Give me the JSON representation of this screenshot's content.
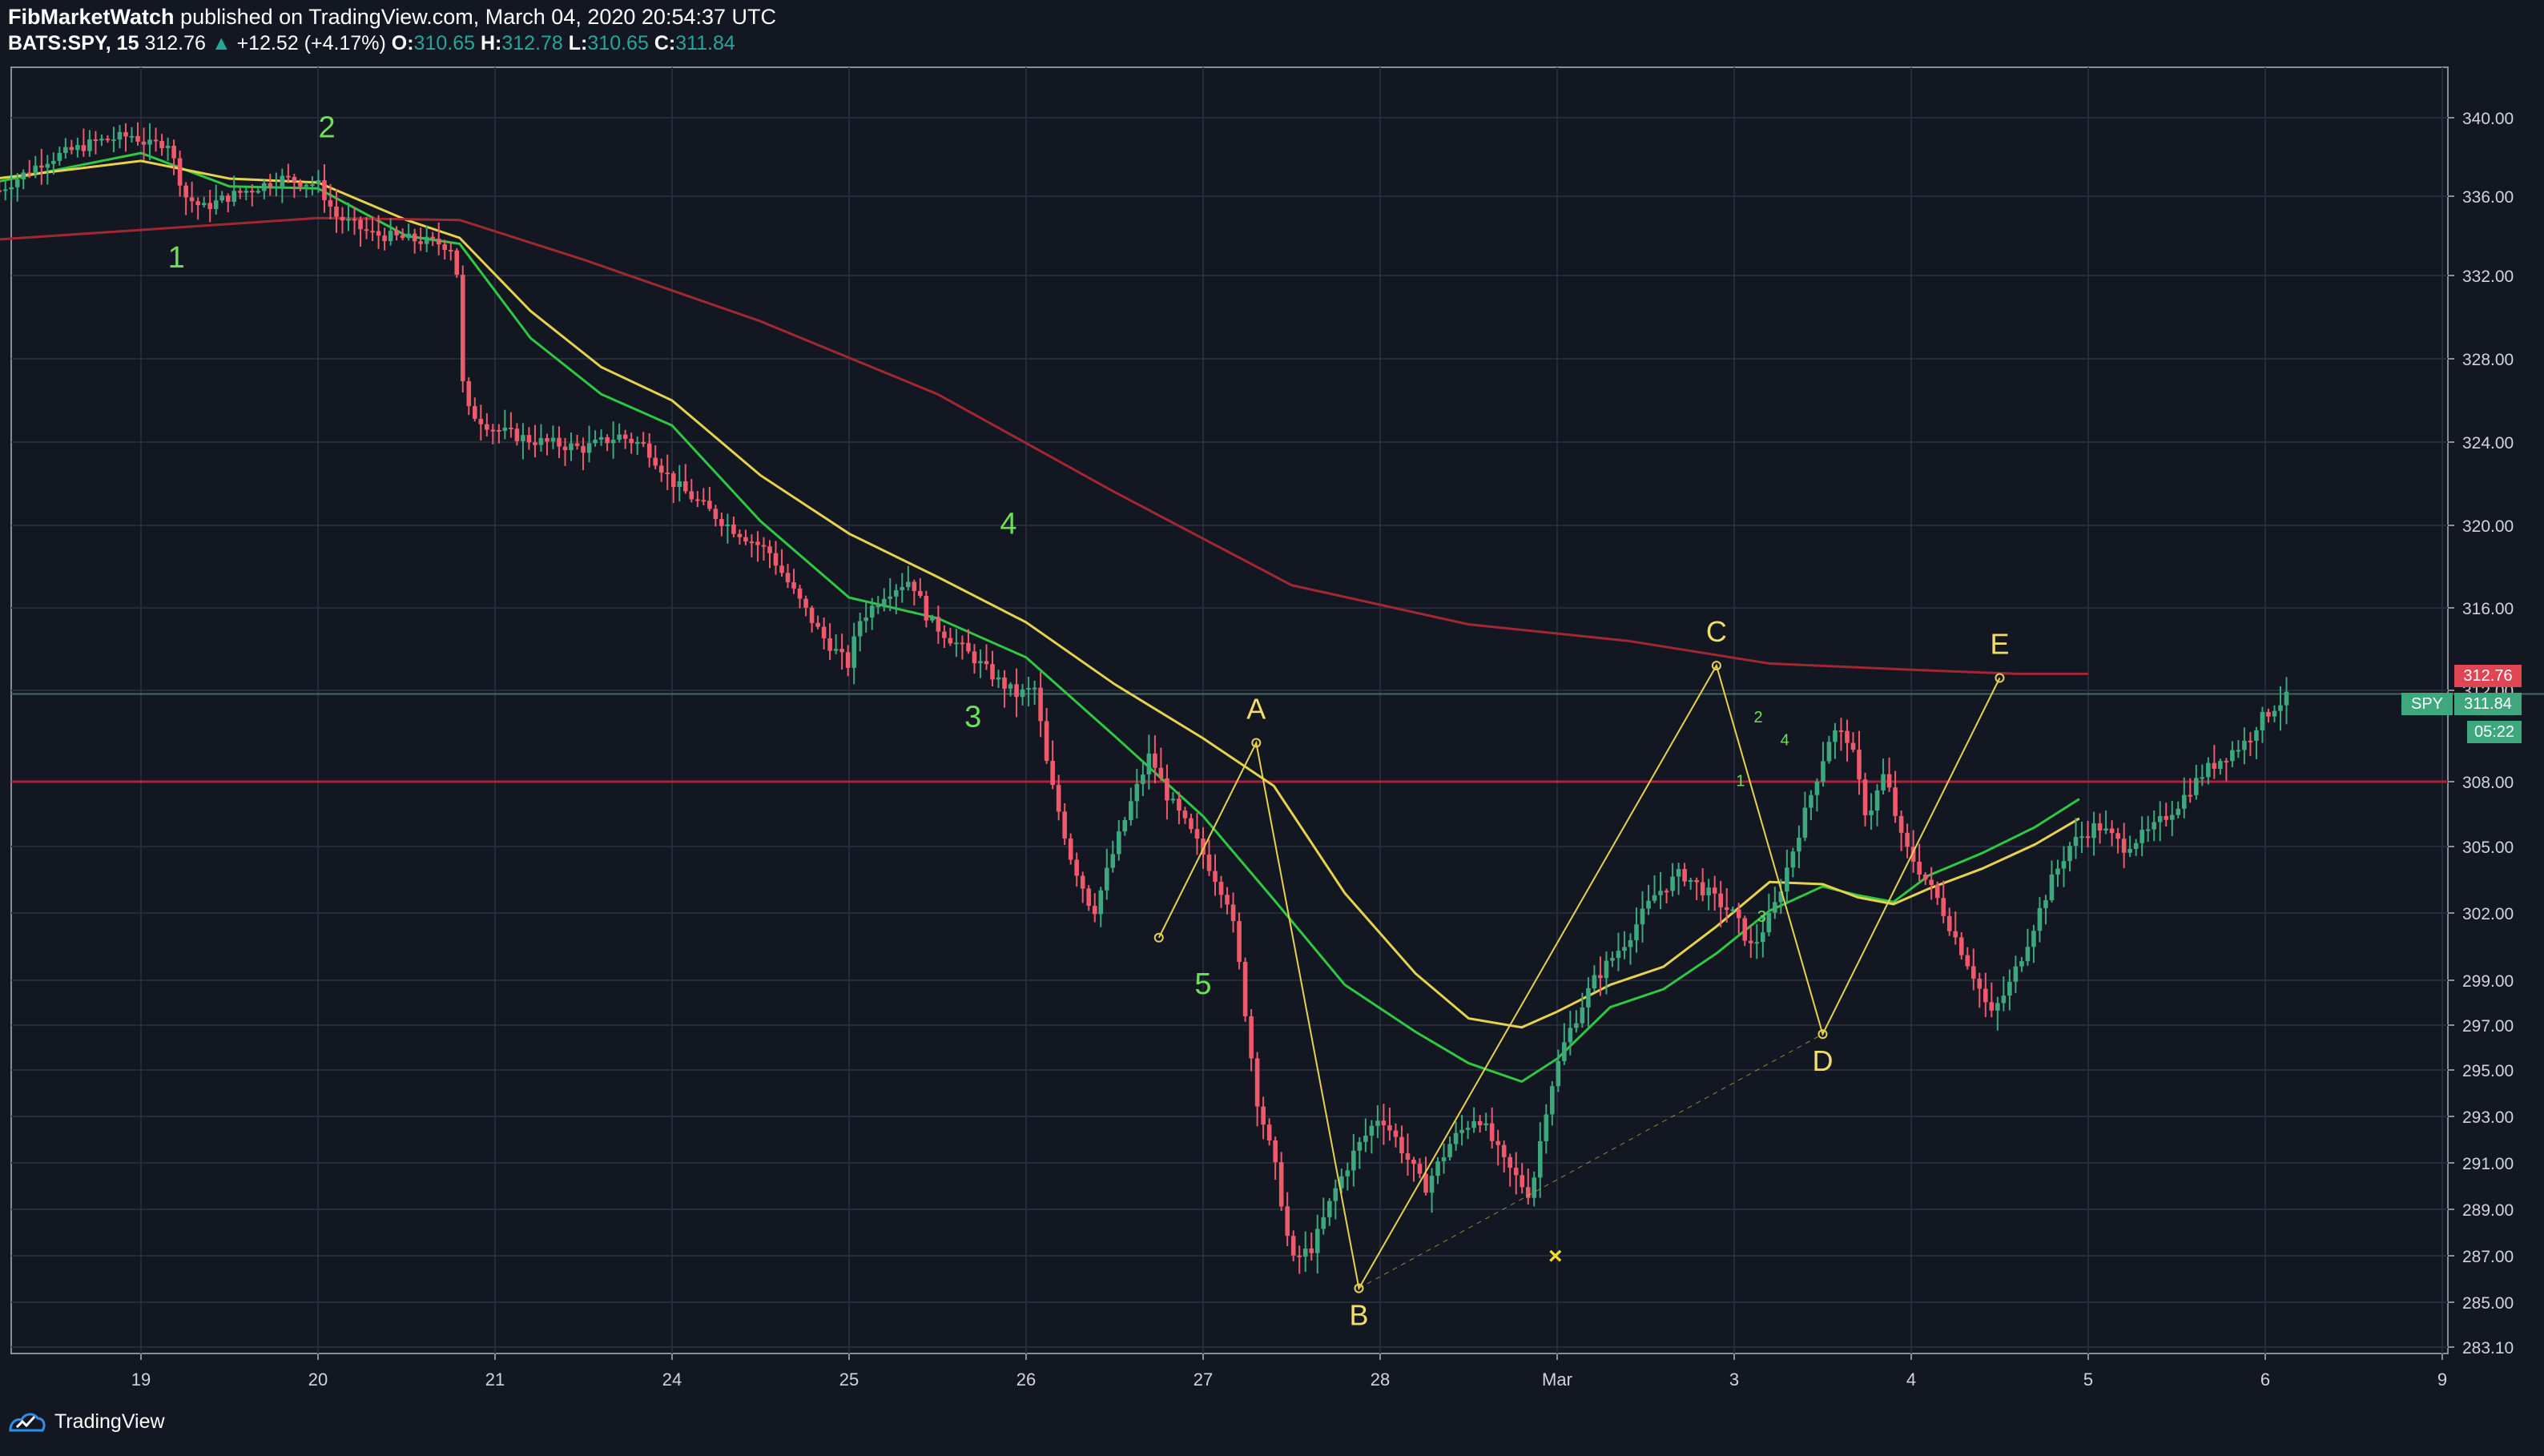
{
  "header": {
    "publisher": "FibMarketWatch",
    "published_text": "published on TradingView.com, March 04, 2020 20:54:37 UTC",
    "symbol": "BATS:SPY, 15",
    "last_price": "312.76",
    "change": "+12.52 (+4.17%)",
    "open_label": "O:",
    "open": "310.65",
    "high_label": "H:",
    "high": "312.78",
    "low_label": "L:",
    "low": "310.65",
    "close_label": "C:",
    "close": "311.84"
  },
  "badges": {
    "ma_price": "312.76",
    "symbol_tag": "SPY",
    "last_price": "311.84",
    "countdown": "05:22"
  },
  "footer": {
    "brand": "TradingView"
  },
  "colors": {
    "background": "#131722",
    "grid": "#262b3a",
    "up": "#3ea77e",
    "down": "#ee5a6c",
    "ema_fast": "#2ec842",
    "ema_slow": "#e6d24d",
    "ma_long": "#a12833",
    "hline": "#b0203a",
    "pattern": "#e6d24d",
    "wave_label": "#6de05a",
    "pattern_label": "#f3dd6a"
  },
  "chart_data": {
    "type": "candlestick",
    "symbol": "BATS:SPY",
    "interval": "15",
    "x_axis_labels": [
      {
        "label": "19",
        "t": 1
      },
      {
        "label": "20",
        "t": 2
      },
      {
        "label": "21",
        "t": 3
      },
      {
        "label": "24",
        "t": 4
      },
      {
        "label": "25",
        "t": 5
      },
      {
        "label": "26",
        "t": 6
      },
      {
        "label": "27",
        "t": 7
      },
      {
        "label": "28",
        "t": 8
      },
      {
        "label": "Mar",
        "t": 9
      },
      {
        "label": "3",
        "t": 10
      },
      {
        "label": "4",
        "t": 11
      },
      {
        "label": "5",
        "t": 12
      },
      {
        "label": "6",
        "t": 13
      },
      {
        "label": "9",
        "t": 14
      }
    ],
    "y_axis_ticks": [
      "340.00",
      "336.00",
      "332.00",
      "328.00",
      "324.00",
      "320.00",
      "316.00",
      "312.00",
      "308.00",
      "305.00",
      "302.00",
      "299.00",
      "297.00",
      "295.00",
      "293.00",
      "291.00",
      "289.00",
      "287.00",
      "285.00",
      "283.10"
    ],
    "price_path": [
      [
        0.2,
        336.3
      ],
      [
        0.45,
        337.8
      ],
      [
        0.75,
        338.8
      ],
      [
        0.95,
        339.1
      ],
      [
        1.05,
        338.6
      ],
      [
        1.15,
        338.8
      ],
      [
        1.25,
        336.0
      ],
      [
        1.35,
        335.4
      ],
      [
        1.5,
        336.0
      ],
      [
        1.8,
        336.9
      ],
      [
        2.0,
        336.6
      ],
      [
        2.1,
        335.0
      ],
      [
        2.3,
        334.1
      ],
      [
        2.7,
        333.6
      ],
      [
        2.78,
        333.3
      ],
      [
        2.8,
        327.5
      ],
      [
        2.85,
        325.5
      ],
      [
        3.0,
        324.6
      ],
      [
        3.2,
        324.1
      ],
      [
        3.5,
        323.7
      ],
      [
        3.7,
        324.3
      ],
      [
        3.85,
        323.8
      ],
      [
        4.0,
        322.1
      ],
      [
        4.3,
        320.1
      ],
      [
        4.55,
        318.7
      ],
      [
        4.7,
        316.6
      ],
      [
        4.85,
        314.6
      ],
      [
        5.0,
        313.2
      ],
      [
        5.05,
        315.3
      ],
      [
        5.2,
        316.7
      ],
      [
        5.35,
        317.4
      ],
      [
        5.45,
        315.4
      ],
      [
        5.7,
        313.6
      ],
      [
        5.85,
        312.4
      ],
      [
        5.95,
        311.8
      ],
      [
        6.05,
        312.1
      ],
      [
        6.12,
        308.6
      ],
      [
        6.25,
        304.6
      ],
      [
        6.38,
        302.0
      ],
      [
        6.5,
        304.9
      ],
      [
        6.6,
        307.2
      ],
      [
        6.7,
        309.2
      ],
      [
        6.8,
        307.3
      ],
      [
        6.95,
        305.4
      ],
      [
        7.05,
        303.9
      ],
      [
        7.15,
        302.4
      ],
      [
        7.2,
        299.9
      ],
      [
        7.3,
        293.9
      ],
      [
        7.42,
        290.4
      ],
      [
        7.5,
        286.7
      ],
      [
        7.62,
        287.4
      ],
      [
        7.75,
        289.9
      ],
      [
        7.85,
        291.4
      ],
      [
        8.0,
        293.1
      ],
      [
        8.1,
        291.9
      ],
      [
        8.25,
        289.9
      ],
      [
        8.4,
        291.9
      ],
      [
        8.55,
        293.1
      ],
      [
        8.7,
        291.0
      ],
      [
        8.85,
        289.6
      ],
      [
        8.95,
        293.9
      ],
      [
        9.05,
        296.4
      ],
      [
        9.2,
        298.9
      ],
      [
        9.4,
        300.9
      ],
      [
        9.55,
        302.8
      ],
      [
        9.7,
        303.8
      ],
      [
        9.85,
        302.9
      ],
      [
        10.0,
        301.9
      ],
      [
        10.1,
        300.4
      ],
      [
        10.22,
        302.1
      ],
      [
        10.35,
        305.3
      ],
      [
        10.45,
        307.8
      ],
      [
        10.55,
        310.2
      ],
      [
        10.65,
        309.9
      ],
      [
        10.75,
        306.3
      ],
      [
        10.85,
        308.4
      ],
      [
        10.95,
        305.2
      ],
      [
        11.05,
        303.9
      ],
      [
        11.15,
        302.6
      ],
      [
        11.25,
        300.9
      ],
      [
        11.35,
        299.3
      ],
      [
        11.45,
        297.4
      ],
      [
        11.55,
        298.7
      ],
      [
        11.65,
        300.6
      ],
      [
        11.8,
        303.6
      ],
      [
        11.9,
        305.1
      ],
      [
        12.05,
        306.0
      ],
      [
        12.2,
        305.0
      ],
      [
        12.35,
        305.7
      ],
      [
        12.5,
        306.9
      ],
      [
        12.65,
        308.4
      ],
      [
        12.8,
        309.3
      ],
      [
        12.9,
        309.8
      ],
      [
        12.95,
        310.5
      ],
      [
        13.05,
        311.3
      ],
      [
        13.15,
        311.8
      ]
    ],
    "wave_labels": [
      {
        "label": "1",
        "t": 1.2,
        "price": 332.4
      },
      {
        "label": "2",
        "t": 2.05,
        "price": 339.0
      },
      {
        "label": "3",
        "t": 5.7,
        "price": 310.4
      },
      {
        "label": "4",
        "t": 5.9,
        "price": 319.6
      },
      {
        "label": "5",
        "t": 7.0,
        "price": 298.4
      }
    ],
    "pattern_points": [
      {
        "label": "A",
        "t": 7.3,
        "price": 309.7
      },
      {
        "label": "B",
        "t": 7.88,
        "price": 285.6
      },
      {
        "label": "C",
        "t": 9.9,
        "price": 313.2
      },
      {
        "label": "D",
        "t": 10.5,
        "price": 296.6
      },
      {
        "label": "E",
        "t": 11.5,
        "price": 312.6
      }
    ],
    "pattern_extra_points": [
      {
        "t": 6.75,
        "price": 300.9
      }
    ],
    "sub_wave_labels": [
      {
        "label": "1",
        "t": 9.9,
        "price": 307.8
      },
      {
        "label": "2",
        "t": 10.0,
        "price": 310.6
      },
      {
        "label": "3",
        "t": 10.02,
        "price": 301.6
      },
      {
        "label": "4",
        "t": 10.15,
        "price": 309.6
      }
    ],
    "horizontal_lines": [
      308.0
    ],
    "last_price_line": 311.84,
    "moving_averages": [
      {
        "name": "EMA fast",
        "points": [
          [
            0,
            336.4
          ],
          [
            1,
            338.2
          ],
          [
            1.5,
            336.5
          ],
          [
            2,
            336.4
          ],
          [
            2.5,
            334.0
          ],
          [
            2.8,
            333.6
          ],
          [
            3.2,
            329.0
          ],
          [
            3.6,
            326.3
          ],
          [
            4,
            324.8
          ],
          [
            4.5,
            320.2
          ],
          [
            5,
            316.5
          ],
          [
            5.5,
            315.5
          ],
          [
            6,
            313.6
          ],
          [
            6.5,
            310.0
          ],
          [
            7,
            306.4
          ],
          [
            7.4,
            302.6
          ],
          [
            7.8,
            298.8
          ],
          [
            8.2,
            296.7
          ],
          [
            8.5,
            295.3
          ],
          [
            8.8,
            294.5
          ],
          [
            9,
            295.5
          ],
          [
            9.3,
            297.8
          ],
          [
            9.6,
            298.6
          ],
          [
            9.9,
            300.2
          ],
          [
            10.2,
            302.1
          ],
          [
            10.5,
            303.2
          ],
          [
            10.7,
            302.8
          ],
          [
            10.9,
            302.5
          ],
          [
            11.1,
            303.7
          ],
          [
            11.4,
            304.7
          ],
          [
            11.7,
            305.9
          ],
          [
            11.95,
            307.2
          ]
        ]
      },
      {
        "name": "EMA slow",
        "points": [
          [
            0,
            336.7
          ],
          [
            1,
            337.8
          ],
          [
            1.5,
            336.9
          ],
          [
            2,
            336.7
          ],
          [
            2.5,
            334.8
          ],
          [
            2.8,
            333.9
          ],
          [
            3.2,
            330.3
          ],
          [
            3.6,
            327.6
          ],
          [
            4,
            326.0
          ],
          [
            4.5,
            322.4
          ],
          [
            5,
            319.6
          ],
          [
            5.5,
            317.5
          ],
          [
            6,
            315.3
          ],
          [
            6.5,
            312.3
          ],
          [
            7,
            309.9
          ],
          [
            7.4,
            307.8
          ],
          [
            7.8,
            302.9
          ],
          [
            8.2,
            299.3
          ],
          [
            8.5,
            297.3
          ],
          [
            8.8,
            296.9
          ],
          [
            9,
            297.6
          ],
          [
            9.3,
            298.8
          ],
          [
            9.6,
            299.6
          ],
          [
            9.9,
            301.4
          ],
          [
            10.2,
            303.4
          ],
          [
            10.5,
            303.3
          ],
          [
            10.7,
            302.7
          ],
          [
            10.9,
            302.4
          ],
          [
            11.1,
            303.1
          ],
          [
            11.4,
            304.0
          ],
          [
            11.7,
            305.1
          ],
          [
            11.95,
            306.3
          ]
        ]
      },
      {
        "name": "MA long",
        "points": [
          [
            0,
            333.7
          ],
          [
            1,
            334.3
          ],
          [
            2,
            334.9
          ],
          [
            2.8,
            334.8
          ],
          [
            3.5,
            332.8
          ],
          [
            4.5,
            329.8
          ],
          [
            5.5,
            326.3
          ],
          [
            6.5,
            321.6
          ],
          [
            7.5,
            317.1
          ],
          [
            8.5,
            315.2
          ],
          [
            9.4,
            314.4
          ],
          [
            10.2,
            313.3
          ],
          [
            11,
            313.0
          ],
          [
            11.6,
            312.8
          ],
          [
            12,
            312.8
          ]
        ]
      }
    ]
  }
}
